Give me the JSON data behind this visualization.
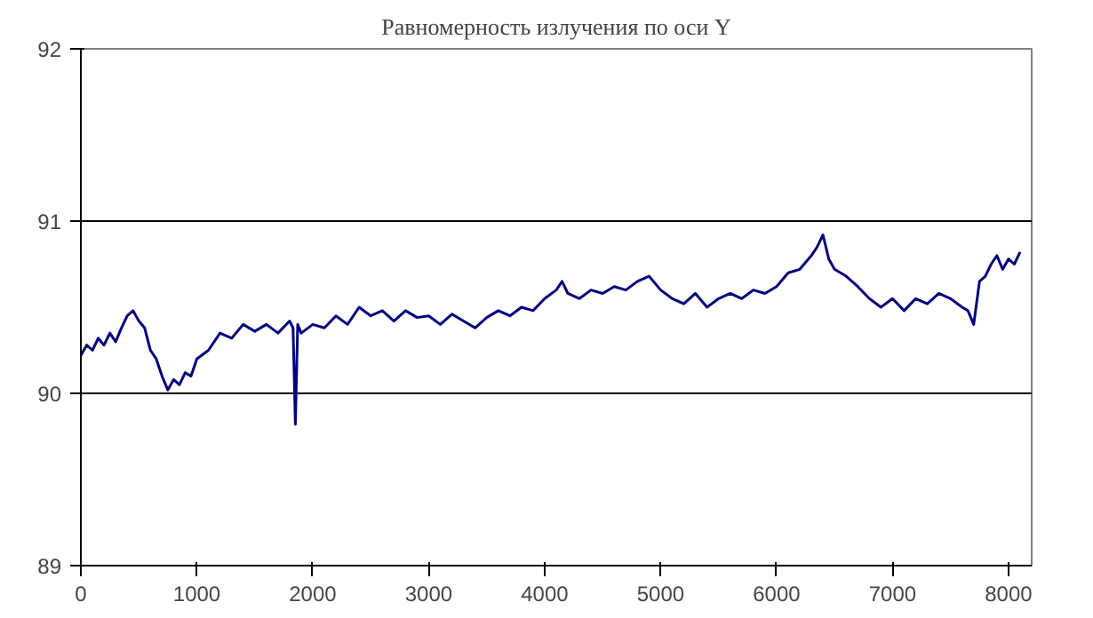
{
  "chart_data": {
    "type": "line",
    "title": "Равномерность излучения по оси Y",
    "x": [
      0,
      50,
      100,
      150,
      200,
      250,
      300,
      350,
      400,
      450,
      500,
      550,
      600,
      650,
      700,
      750,
      800,
      850,
      900,
      950,
      1000,
      1100,
      1200,
      1300,
      1400,
      1500,
      1600,
      1700,
      1800,
      1830,
      1850,
      1870,
      1900,
      2000,
      2100,
      2200,
      2300,
      2400,
      2500,
      2600,
      2700,
      2800,
      2900,
      3000,
      3100,
      3200,
      3300,
      3400,
      3500,
      3600,
      3700,
      3800,
      3900,
      4000,
      4100,
      4150,
      4200,
      4300,
      4400,
      4500,
      4600,
      4700,
      4800,
      4900,
      5000,
      5100,
      5200,
      5300,
      5400,
      5500,
      5600,
      5700,
      5800,
      5900,
      6000,
      6100,
      6200,
      6300,
      6350,
      6400,
      6450,
      6500,
      6600,
      6700,
      6800,
      6900,
      7000,
      7100,
      7200,
      7300,
      7400,
      7500,
      7600,
      7650,
      7700,
      7750,
      7800,
      7850,
      7900,
      7950,
      8000,
      8050,
      8100
    ],
    "series": [
      {
        "color": "#000080",
        "values": [
          90.22,
          90.28,
          90.25,
          90.32,
          90.28,
          90.35,
          90.3,
          90.38,
          90.45,
          90.48,
          90.42,
          90.38,
          90.25,
          90.2,
          90.1,
          90.02,
          90.08,
          90.05,
          90.12,
          90.1,
          90.2,
          90.25,
          90.35,
          90.32,
          90.4,
          90.36,
          90.4,
          90.35,
          90.42,
          90.38,
          89.82,
          90.4,
          90.35,
          90.4,
          90.38,
          90.45,
          90.4,
          90.5,
          90.45,
          90.48,
          90.42,
          90.48,
          90.44,
          90.45,
          90.4,
          90.46,
          90.42,
          90.38,
          90.44,
          90.48,
          90.45,
          90.5,
          90.48,
          90.55,
          90.6,
          90.65,
          90.58,
          90.55,
          90.6,
          90.58,
          90.62,
          90.6,
          90.65,
          90.68,
          90.6,
          90.55,
          90.52,
          90.58,
          90.5,
          90.55,
          90.58,
          90.55,
          90.6,
          90.58,
          90.62,
          90.7,
          90.72,
          90.8,
          90.85,
          90.92,
          90.78,
          90.72,
          90.68,
          90.62,
          90.55,
          90.5,
          90.55,
          90.48,
          90.55,
          90.52,
          90.58,
          90.55,
          90.5,
          90.48,
          90.4,
          90.65,
          90.68,
          90.75,
          90.8,
          90.72,
          90.78,
          90.75,
          90.82
        ]
      }
    ],
    "xlim": [
      0,
      8200
    ],
    "ylim": [
      89,
      92
    ],
    "xticks": [
      0,
      1000,
      2000,
      3000,
      4000,
      5000,
      6000,
      7000,
      8000
    ],
    "yticks": [
      89,
      90,
      91,
      92
    ],
    "grid": "y"
  }
}
